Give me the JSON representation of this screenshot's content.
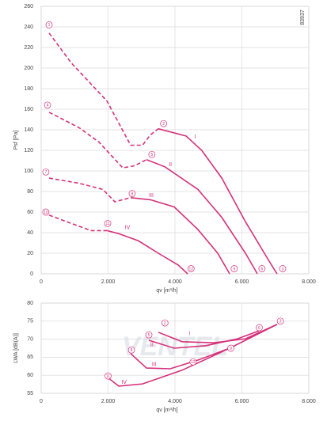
{
  "chart_data": [
    {
      "type": "line",
      "x_label": "qv [m³/h]",
      "y_label": "Psf [Pa]",
      "code": "83937",
      "xlim": [
        0,
        8000
      ],
      "xticks": [
        0,
        {
          "value": 2000,
          "label": "2.000"
        },
        {
          "value": 4000,
          "label": "4.000"
        },
        {
          "value": 6000,
          "label": "6.000"
        },
        {
          "value": 8000,
          "label": "8.000"
        }
      ],
      "ylim": [
        0,
        260
      ],
      "yticks": [
        0,
        20,
        40,
        60,
        80,
        100,
        120,
        140,
        160,
        180,
        200,
        220,
        240,
        260
      ],
      "grid": true,
      "color": "#d4317a",
      "series": [
        {
          "name": "I",
          "dashed": {
            "x": [
              237,
              900,
              1965,
              2675,
              3030,
              3265,
              3500
            ],
            "values": [
              234,
              205,
              168,
              125,
              125,
              135,
              141
            ]
          },
          "solid": {
            "x": [
              3500,
              4330,
              4800,
              5400,
              6100,
              6820,
              7050
            ],
            "values": [
              141,
              134,
              120,
              93,
              51,
              12,
              0
            ]
          }
        },
        {
          "name": "II",
          "dashed": {
            "x": [
              237,
              1136,
              1728,
              2438,
              2793,
              3148
            ],
            "values": [
              157,
              142,
              128,
              103,
              105,
              111
            ]
          },
          "solid": {
            "x": [
              3148,
              3700,
              4687,
              5396,
              6107,
              6462
            ],
            "values": [
              111,
              104,
              82,
              55,
              20,
              0
            ]
          }
        },
        {
          "name": "III",
          "dashed": {
            "x": [
              237,
              1136,
              1846,
              2201,
              2675
            ],
            "values": [
              93,
              88,
              82,
              70,
              74
            ]
          },
          "solid": {
            "x": [
              2675,
              3266,
              3977,
              4687,
              5278,
              5634
            ],
            "values": [
              74,
              72,
              65,
              43,
              20,
              0
            ]
          }
        },
        {
          "name": "IV",
          "dashed": {
            "x": [
              237,
              900,
              1491,
              1965
            ],
            "values": [
              57,
              49,
              42,
              42
            ]
          },
          "solid": {
            "x": [
              1965,
              2320,
              2911,
              3503,
              4095,
              4379
            ],
            "values": [
              42,
              39,
              32,
              20,
              8.5,
              0
            ]
          }
        }
      ],
      "curve_labels": [
        {
          "text": "I",
          "x": 4600,
          "y": 133
        },
        {
          "text": "II",
          "x": 3860,
          "y": 106
        },
        {
          "text": "III",
          "x": 3290,
          "y": 76
        },
        {
          "text": "IV",
          "x": 2580,
          "y": 45
        }
      ],
      "markers": [
        {
          "text": "1",
          "x": 237,
          "y": 242
        },
        {
          "text": "2",
          "x": 3660,
          "y": 146
        },
        {
          "text": "3",
          "x": 7220,
          "y": 5
        },
        {
          "text": "4",
          "x": 190,
          "y": 164
        },
        {
          "text": "5",
          "x": 3310,
          "y": 116
        },
        {
          "text": "6",
          "x": 6600,
          "y": 5
        },
        {
          "text": "7",
          "x": 140,
          "y": 99
        },
        {
          "text": "8",
          "x": 2720,
          "y": 78
        },
        {
          "text": "9",
          "x": 5770,
          "y": 5
        },
        {
          "text": "10",
          "x": 140,
          "y": 60
        },
        {
          "text": "11",
          "x": 1990,
          "y": 49
        },
        {
          "text": "12",
          "x": 4480,
          "y": 5
        }
      ]
    },
    {
      "type": "line",
      "x_label": "qv [m³/h]",
      "y_label": "LWA [dB(A)]",
      "watermark": "VENTEL",
      "xlim": [
        0,
        8000
      ],
      "xticks": [
        0,
        {
          "value": 2000,
          "label": "2.000"
        },
        {
          "value": 4000,
          "label": "4.000"
        },
        {
          "value": 6000,
          "label": "6.000"
        },
        {
          "value": 8000,
          "label": "8.000"
        }
      ],
      "ylim": [
        55,
        80
      ],
      "yticks": [
        55,
        60,
        65,
        70,
        75,
        80
      ],
      "grid": true,
      "color": "#d4317a",
      "series": [
        {
          "name": "I",
          "solid": {
            "x": [
              3503,
              4213,
              5160,
              6107,
              7053
            ],
            "values": [
              71.9,
              69.3,
              69,
              70.1,
              74.1
            ]
          }
        },
        {
          "name": "II",
          "solid": {
            "x": [
              3219,
              3977,
              4923,
              5870,
              6509
            ],
            "values": [
              69.7,
              67.5,
              68.2,
              70.1,
              72.3
            ]
          }
        },
        {
          "name": "III",
          "solid": {
            "x": [
              2675,
              3148,
              3858,
              4687,
              5634
            ],
            "values": [
              66,
              62,
              61.8,
              64.2,
              67.5
            ]
          }
        },
        {
          "name": "IV",
          "solid": {
            "x": [
              2012,
              2320,
              3030,
              4213,
              5634,
              7053
            ],
            "values": [
              59.2,
              57,
              57.6,
              61.4,
              67.5,
              74.1
            ]
          }
        }
      ],
      "curve_labels": [
        {
          "text": "I",
          "x": 4430,
          "y": 71.5
        },
        {
          "text": "II",
          "x": 3310,
          "y": 68.5
        },
        {
          "text": "III",
          "x": 3380,
          "y": 63
        },
        {
          "text": "IV",
          "x": 2480,
          "y": 58
        }
      ],
      "markers": [
        {
          "text": "2",
          "x": 3700,
          "y": 74.5
        },
        {
          "text": "3",
          "x": 7150,
          "y": 75
        },
        {
          "text": "5",
          "x": 3220,
          "y": 71.2
        },
        {
          "text": "6",
          "x": 6520,
          "y": 73.2
        },
        {
          "text": "8",
          "x": 2700,
          "y": 67
        },
        {
          "text": "9",
          "x": 5670,
          "y": 67.5
        },
        {
          "text": "11",
          "x": 2000,
          "y": 59.8
        },
        {
          "text": "12",
          "x": 4540,
          "y": 63.7
        }
      ]
    }
  ]
}
